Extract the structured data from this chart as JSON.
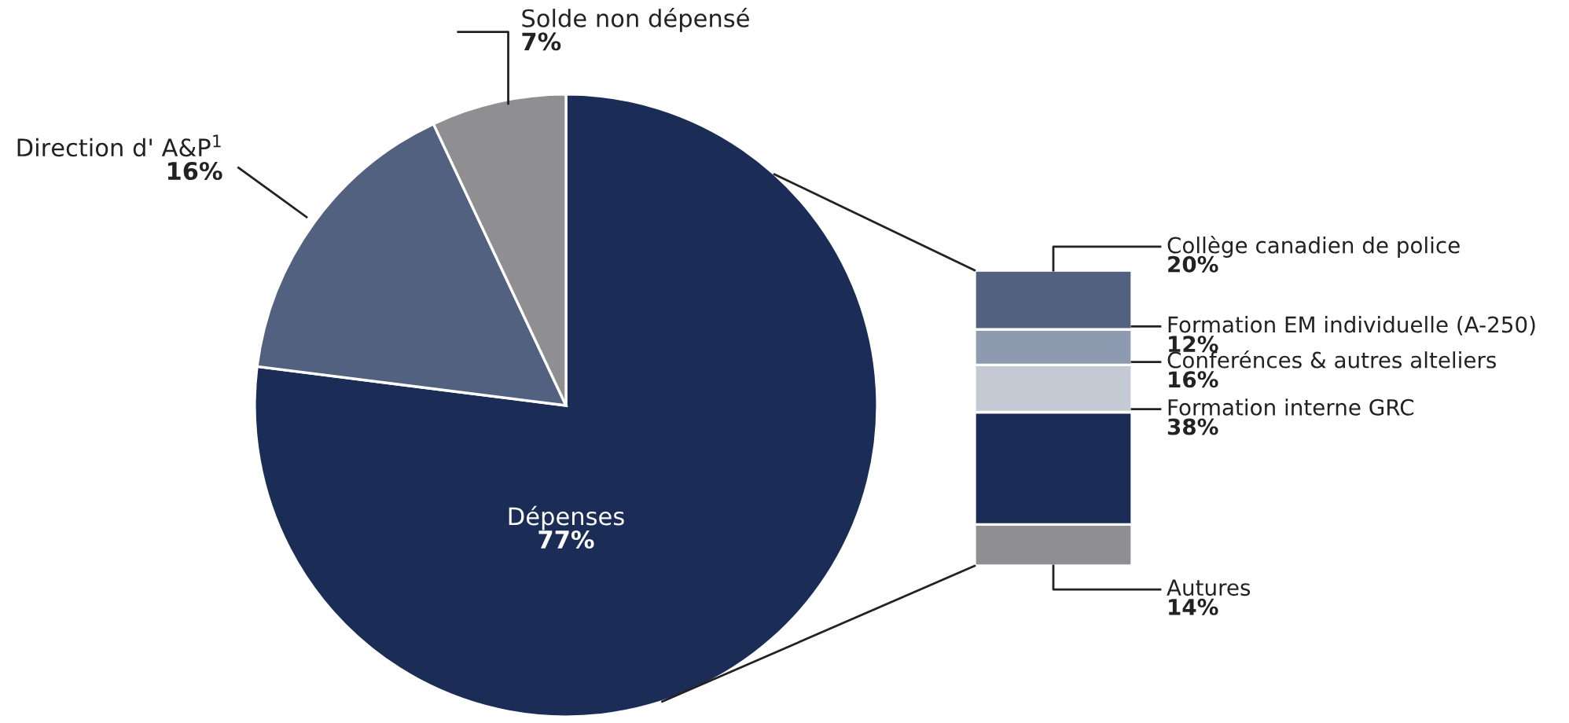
{
  "chart_data": [
    {
      "type": "pie",
      "categories": [
        "Dépenses",
        "Direction d' A&P$^{1}$",
        "Solde non dépensé"
      ],
      "values": [
        77,
        16,
        7
      ],
      "colors": [
        "#1b2d56",
        "#52617f",
        "#8f8e90"
      ],
      "value_labels": [
        "77%",
        "16%",
        "7%"
      ]
    },
    {
      "type": "bar",
      "stacked": true,
      "categories": [
        null
      ],
      "tick_labels": false,
      "series": [
        {
          "name": "Autures",
          "color": "#8f8e90",
          "values": [
            14
          ],
          "value_labels": [
            "14%"
          ]
        },
        {
          "name": "Formation interne GRC",
          "color": "#1b2d56",
          "values": [
            38
          ],
          "value_labels": [
            "38%"
          ]
        },
        {
          "name": "Conferénces & autres alteliers",
          "color": "#c5c9d3",
          "values": [
            16
          ],
          "value_labels": [
            "16%"
          ]
        },
        {
          "name": "Formation EM individuelle (A-250)",
          "color": "#8e9ab0",
          "values": [
            12
          ],
          "value_labels": [
            "12%"
          ]
        },
        {
          "name": "Collège canadien de police",
          "color": "#52617f",
          "values": [
            20
          ],
          "value_labels": [
            "20%"
          ]
        }
      ]
    }
  ]
}
